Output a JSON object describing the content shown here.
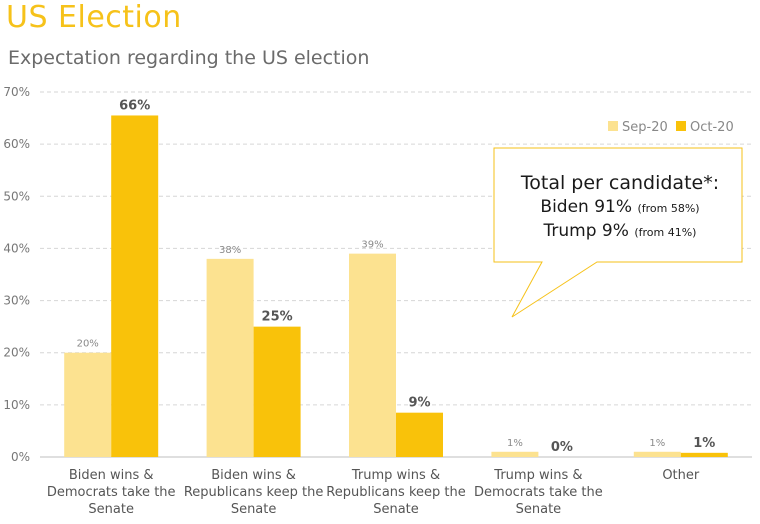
{
  "page": {
    "title": "US Election",
    "subtitle": "Expectation regarding the US election"
  },
  "callout": {
    "heading": "Total per candidate*:",
    "biden_main": "Biden 91%",
    "biden_from": "(from 58%)",
    "trump_main": "Trump 9%",
    "trump_from": "(from 41%)"
  },
  "colors": {
    "sep": "#fce290",
    "oct": "#f9c20a",
    "title": "#f6c21a"
  },
  "chart_data": {
    "type": "bar",
    "categories": [
      [
        "Biden wins &",
        "Democrats take the",
        "Senate"
      ],
      [
        "Biden wins &",
        "Republicans keep the",
        "Senate"
      ],
      [
        "Trump wins &",
        "Republicans keep the",
        "Senate"
      ],
      [
        "Trump wins &",
        "Democrats take the",
        "Senate"
      ],
      [
        "Other"
      ]
    ],
    "series": [
      {
        "name": "Sep-20",
        "values": [
          20,
          38,
          39,
          1,
          1
        ],
        "labels": [
          "20%",
          "38%",
          "39%",
          "1%",
          "1%"
        ]
      },
      {
        "name": "Oct-20",
        "values": [
          65.5,
          25,
          8.5,
          0,
          0.8
        ],
        "labels": [
          "66%",
          "25%",
          "9%",
          "0%",
          "1%"
        ]
      }
    ],
    "ylim": [
      0,
      70
    ],
    "yticks": [
      "0%",
      "10%",
      "20%",
      "30%",
      "40%",
      "50%",
      "60%",
      "70%"
    ],
    "grid": true,
    "legend": "top-right"
  }
}
